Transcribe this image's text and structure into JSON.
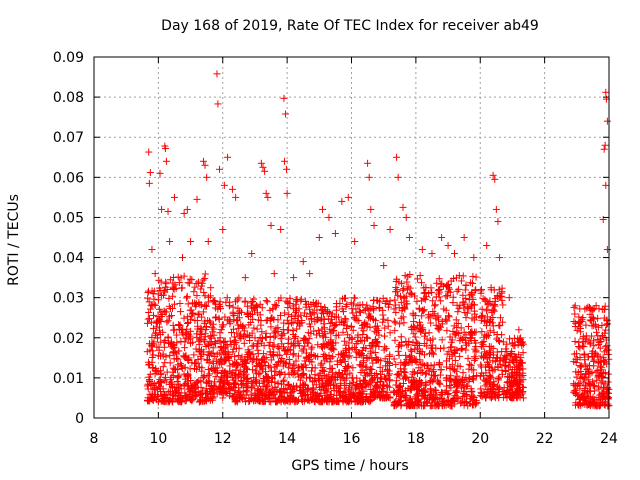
{
  "chart_data": {
    "type": "scatter",
    "title": "Day 168 of 2019, Rate Of TEC Index for receiver ab49",
    "xlabel": "GPS time / hours",
    "ylabel": "ROTI / TECUs",
    "xlim": [
      8,
      24
    ],
    "ylim": [
      0,
      0.09
    ],
    "x_ticks": [
      "8",
      "10",
      "12",
      "14",
      "16",
      "18",
      "20",
      "22",
      "24"
    ],
    "y_ticks": [
      "0",
      "0.01",
      "0.02",
      "0.03",
      "0.04",
      "0.05",
      "0.06",
      "0.07",
      "0.08",
      "0.09"
    ],
    "grid": true,
    "legend": "none",
    "marker": "+",
    "marker_color": "#ff0000",
    "series": [
      {
        "points": [
          [
            9.7,
            0.0663
          ],
          [
            9.75,
            0.0612
          ],
          [
            9.72,
            0.0585
          ],
          [
            9.8,
            0.042
          ],
          [
            9.9,
            0.036
          ],
          [
            10.05,
            0.061
          ],
          [
            10.1,
            0.052
          ],
          [
            10.2,
            0.0678
          ],
          [
            10.22,
            0.0672
          ],
          [
            10.25,
            0.064
          ],
          [
            10.3,
            0.0515
          ],
          [
            10.35,
            0.044
          ],
          [
            10.5,
            0.055
          ],
          [
            10.75,
            0.04
          ],
          [
            10.8,
            0.051
          ],
          [
            10.9,
            0.052
          ],
          [
            11.0,
            0.044
          ],
          [
            11.2,
            0.0545
          ],
          [
            11.4,
            0.064
          ],
          [
            11.45,
            0.063
          ],
          [
            11.5,
            0.06
          ],
          [
            11.55,
            0.044
          ],
          [
            11.82,
            0.0858
          ],
          [
            11.85,
            0.0783
          ],
          [
            11.9,
            0.062
          ],
          [
            12.0,
            0.047
          ],
          [
            12.05,
            0.058
          ],
          [
            12.15,
            0.065
          ],
          [
            12.3,
            0.057
          ],
          [
            12.4,
            0.055
          ],
          [
            12.7,
            0.035
          ],
          [
            12.9,
            0.041
          ],
          [
            13.2,
            0.0635
          ],
          [
            13.25,
            0.0625
          ],
          [
            13.3,
            0.0615
          ],
          [
            13.35,
            0.056
          ],
          [
            13.4,
            0.055
          ],
          [
            13.5,
            0.048
          ],
          [
            13.6,
            0.036
          ],
          [
            13.8,
            0.047
          ],
          [
            13.9,
            0.0797
          ],
          [
            13.95,
            0.0758
          ],
          [
            13.92,
            0.064
          ],
          [
            13.98,
            0.062
          ],
          [
            14.0,
            0.056
          ],
          [
            14.2,
            0.035
          ],
          [
            14.5,
            0.039
          ],
          [
            14.7,
            0.036
          ],
          [
            15.0,
            0.045
          ],
          [
            15.1,
            0.052
          ],
          [
            15.3,
            0.05
          ],
          [
            15.5,
            0.046
          ],
          [
            15.7,
            0.054
          ],
          [
            15.9,
            0.055
          ],
          [
            16.1,
            0.044
          ],
          [
            16.5,
            0.0635
          ],
          [
            16.55,
            0.06
          ],
          [
            16.6,
            0.052
          ],
          [
            16.7,
            0.048
          ],
          [
            17.0,
            0.038
          ],
          [
            17.2,
            0.047
          ],
          [
            17.4,
            0.065
          ],
          [
            17.45,
            0.06
          ],
          [
            17.6,
            0.0525
          ],
          [
            17.7,
            0.05
          ],
          [
            17.8,
            0.045
          ],
          [
            18.2,
            0.042
          ],
          [
            18.5,
            0.041
          ],
          [
            18.8,
            0.045
          ],
          [
            19.0,
            0.043
          ],
          [
            19.2,
            0.041
          ],
          [
            19.5,
            0.045
          ],
          [
            19.8,
            0.04
          ],
          [
            20.2,
            0.043
          ],
          [
            20.4,
            0.0605
          ],
          [
            20.45,
            0.0595
          ],
          [
            20.5,
            0.052
          ],
          [
            20.55,
            0.049
          ],
          [
            20.6,
            0.04
          ],
          [
            20.9,
            0.03
          ],
          [
            21.2,
            0.022
          ],
          [
            23.2,
            0.019
          ],
          [
            23.5,
            0.027
          ],
          [
            23.6,
            0.028
          ],
          [
            23.9,
            0.0812
          ],
          [
            23.92,
            0.0795
          ],
          [
            23.95,
            0.074
          ],
          [
            23.88,
            0.068
          ],
          [
            23.85,
            0.067
          ],
          [
            23.9,
            0.058
          ],
          [
            23.82,
            0.0495
          ],
          [
            23.95,
            0.042
          ],
          [
            9.8,
            0.005
          ],
          [
            10.3,
            0.004
          ],
          [
            11.1,
            0.0055
          ],
          [
            12.0,
            0.005
          ],
          [
            13.0,
            0.005
          ],
          [
            14.2,
            0.005
          ],
          [
            15.8,
            0.0045
          ],
          [
            16.3,
            0.005
          ],
          [
            17.2,
            0.005
          ],
          [
            18.6,
            0.004
          ],
          [
            18.7,
            0.003
          ],
          [
            19.3,
            0.005
          ],
          [
            20.3,
            0.006
          ],
          [
            21.0,
            0.005
          ],
          [
            23.2,
            0.005
          ],
          [
            23.6,
            0.003
          ],
          [
            23.9,
            0.004
          ]
        ],
        "bands": [
          {
            "x": [
              9.65,
              10.0
            ],
            "y": [
              0.004,
              0.032
            ]
          },
          {
            "x": [
              10.0,
              11.7
            ],
            "y": [
              0.004,
              0.036
            ]
          },
          {
            "x": [
              11.7,
              12.2
            ],
            "y": [
              0.006,
              0.03
            ]
          },
          {
            "x": [
              12.2,
              16.6
            ],
            "y": [
              0.004,
              0.03
            ]
          },
          {
            "x": [
              16.6,
              17.2
            ],
            "y": [
              0.005,
              0.03
            ]
          },
          {
            "x": [
              17.3,
              19.9
            ],
            "y": [
              0.003,
              0.036
            ]
          },
          {
            "x": [
              20.0,
              20.7
            ],
            "y": [
              0.005,
              0.033
            ]
          },
          {
            "x": [
              20.7,
              21.35
            ],
            "y": [
              0.005,
              0.02
            ]
          },
          {
            "x": [
              22.9,
              24.0
            ],
            "y": [
              0.003,
              0.028
            ]
          }
        ]
      }
    ]
  }
}
